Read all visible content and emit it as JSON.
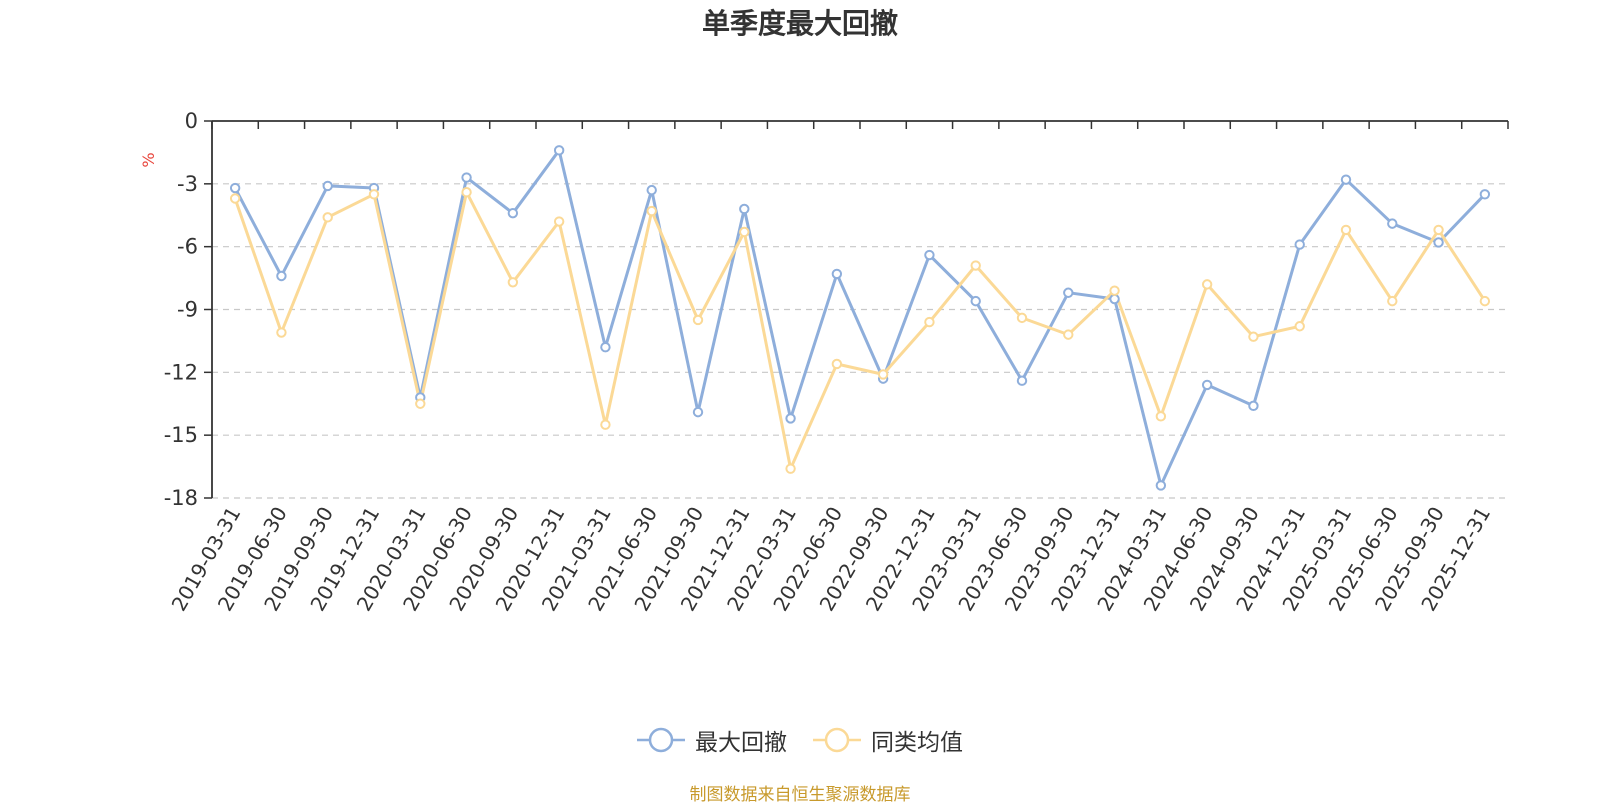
{
  "colors": {
    "series_blue": "#8eaedb",
    "series_orange": "#fbd996",
    "unit": "#e8453c",
    "source": "#c89a2c",
    "axis": "#333333",
    "grid": "#c8c8c8"
  },
  "chart_data": {
    "type": "line",
    "title": "单季度最大回撤",
    "ylabel": "%",
    "ylim": [
      -18,
      0
    ],
    "yticks": [
      0,
      -3,
      -6,
      -9,
      -12,
      -15,
      -18
    ],
    "grid": "horizontal dashed",
    "legend_position": "bottom-center",
    "categories": [
      "2019-03-31",
      "2019-06-30",
      "2019-09-30",
      "2019-12-31",
      "2020-03-31",
      "2020-06-30",
      "2020-09-30",
      "2020-12-31",
      "2021-03-31",
      "2021-06-30",
      "2021-09-30",
      "2021-12-31",
      "2022-03-31",
      "2022-06-30",
      "2022-09-30",
      "2022-12-31",
      "2023-03-31",
      "2023-06-30",
      "2023-09-30",
      "2023-12-31",
      "2024-03-31",
      "2024-06-30",
      "2024-09-30",
      "2024-12-31",
      "2025-03-31",
      "2025-06-30",
      "2025-09-30",
      "2025-12-31"
    ],
    "series": [
      {
        "name": "最大回撤",
        "color": "#8eaedb",
        "values": [
          -3.2,
          -7.4,
          -3.1,
          -3.2,
          -13.2,
          -2.7,
          -4.4,
          -1.4,
          -10.8,
          -3.3,
          -13.9,
          -4.2,
          -14.2,
          -7.3,
          -12.3,
          -6.4,
          -8.6,
          -12.4,
          -8.2,
          -8.5,
          -17.4,
          -12.6,
          -13.6,
          -5.9,
          -2.8,
          -4.9,
          -5.8,
          -3.5
        ]
      },
      {
        "name": "同类均值",
        "color": "#fbd996",
        "values": [
          -3.7,
          -10.1,
          -4.6,
          -3.5,
          -13.5,
          -3.4,
          -7.7,
          -4.8,
          -14.5,
          -4.3,
          -9.5,
          -5.3,
          -16.6,
          -11.6,
          -12.1,
          -9.6,
          -6.9,
          -9.4,
          -10.2,
          -8.1,
          -14.1,
          -7.8,
          -10.3,
          -9.8,
          -5.2,
          -8.6,
          -5.2,
          -8.6
        ]
      }
    ]
  },
  "source_note": "制图数据来自恒生聚源数据库"
}
